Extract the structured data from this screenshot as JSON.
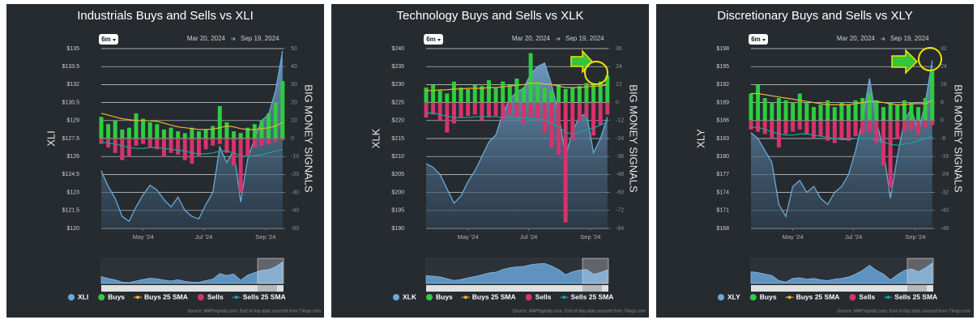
{
  "chart_data": [
    {
      "type": "combo",
      "title": "Industrials Buys and Sells vs XLI",
      "range_button": "6m",
      "date_from": "Mar 20, 2024",
      "date_to": "Sep 19, 2024",
      "ylabel": "XLI",
      "y2label": "BIG MONEY SIGNALS",
      "grid": true,
      "x": [
        "2024-03-20",
        "2024-03-27",
        "2024-04-03",
        "2024-04-10",
        "2024-04-17",
        "2024-04-24",
        "2024-05-01",
        "2024-05-08",
        "2024-05-15",
        "2024-05-22",
        "2024-05-29",
        "2024-06-05",
        "2024-06-12",
        "2024-06-19",
        "2024-06-26",
        "2024-07-03",
        "2024-07-10",
        "2024-07-17",
        "2024-07-24",
        "2024-07-31",
        "2024-08-07",
        "2024-08-14",
        "2024-08-21",
        "2024-08-28",
        "2024-09-04",
        "2024-09-11",
        "2024-09-18"
      ],
      "xlim": [
        "2024-03-20",
        "2024-09-19"
      ],
      "xticks": [
        {
          "value": "2024-05-01",
          "label": "May '24"
        },
        {
          "value": "2024-07-01",
          "label": "Jul '24"
        },
        {
          "value": "2024-09-01",
          "label": "Sep '24"
        }
      ],
      "ylim": [
        120,
        135
      ],
      "yticks": [
        {
          "value": 120,
          "label": "$120"
        },
        {
          "value": 121.5,
          "label": "$121.5"
        },
        {
          "value": 123,
          "label": "$123"
        },
        {
          "value": 124.5,
          "label": "$124.5"
        },
        {
          "value": 126,
          "label": "$126"
        },
        {
          "value": 127.5,
          "label": "$127.5"
        },
        {
          "value": 129,
          "label": "$129"
        },
        {
          "value": 130.5,
          "label": "$130.5"
        },
        {
          "value": 132,
          "label": "$132"
        },
        {
          "value": 133.5,
          "label": "$133.5"
        },
        {
          "value": 135,
          "label": "$135"
        }
      ],
      "y2lim": [
        -50,
        50
      ],
      "y2ticks": [
        -50,
        -40,
        -30,
        -20,
        -10,
        0,
        10,
        20,
        30,
        40,
        50
      ],
      "series": [
        {
          "name": "XLI",
          "color": "#6aa9d8",
          "kind": "area",
          "values": [
            124.8,
            123.5,
            122.5,
            121.0,
            120.6,
            121.8,
            122.8,
            123.6,
            123.2,
            122.4,
            121.8,
            122.6,
            121.5,
            121.0,
            120.8,
            122.0,
            123.0,
            126.8,
            125.5,
            126.5,
            122.2,
            125.8,
            127.5,
            129.0,
            129.5,
            131.5,
            134.8
          ]
        },
        {
          "name": "Buys",
          "color": "#2ecc40",
          "kind": "bar",
          "axis": "y2",
          "values": [
            12,
            8,
            10,
            5,
            6,
            14,
            11,
            9,
            8,
            5,
            6,
            4,
            3,
            6,
            4,
            5,
            7,
            18,
            9,
            4,
            3,
            6,
            8,
            10,
            14,
            20,
            32
          ]
        },
        {
          "name": "Buys 25 SMA",
          "color": "#e8b52e",
          "kind": "line",
          "axis": "y2",
          "values": [
            14,
            13,
            12,
            11,
            10.5,
            10,
            10,
            9.8,
            9.5,
            8.5,
            7.5,
            6.5,
            6,
            5.5,
            5,
            5,
            5.2,
            6,
            7,
            6.5,
            5.5,
            5,
            5,
            5.5,
            6,
            7,
            9
          ]
        },
        {
          "name": "Sells",
          "color": "#d6336c",
          "kind": "bar",
          "axis": "y2",
          "values": [
            -3,
            -5,
            -8,
            -12,
            -10,
            -4,
            -3,
            -5,
            -6,
            -10,
            -8,
            -9,
            -12,
            -14,
            -10,
            -6,
            -4,
            -3,
            -8,
            -15,
            -30,
            -10,
            -5,
            -4,
            -3,
            -2,
            -1
          ]
        },
        {
          "name": "Sells 25 SMA",
          "color": "#1ba39c",
          "kind": "line",
          "axis": "y2",
          "values": [
            -2,
            -2.5,
            -3,
            -4,
            -5,
            -5.5,
            -5.5,
            -5,
            -5,
            -5.5,
            -6,
            -6.5,
            -7,
            -8,
            -8.5,
            -8.5,
            -8,
            -7,
            -7,
            -8,
            -9.5,
            -10,
            -9.5,
            -9,
            -8,
            -7,
            -6
          ]
        }
      ],
      "source": "Source: MAPsignals.com. End of day data sourced from Tiingo.com"
    },
    {
      "type": "combo",
      "title": "Technology Buys and Sells vs XLK",
      "range_button": "6m",
      "date_from": "Mar 20, 2024",
      "date_to": "Sep 19, 2024",
      "ylabel": "XLK",
      "y2label": "BIG MONEY SIGNALS",
      "grid": true,
      "x": [
        "2024-03-20",
        "2024-03-27",
        "2024-04-03",
        "2024-04-10",
        "2024-04-17",
        "2024-04-24",
        "2024-05-01",
        "2024-05-08",
        "2024-05-15",
        "2024-05-22",
        "2024-05-29",
        "2024-06-05",
        "2024-06-12",
        "2024-06-19",
        "2024-06-26",
        "2024-07-03",
        "2024-07-10",
        "2024-07-17",
        "2024-07-24",
        "2024-07-31",
        "2024-08-07",
        "2024-08-14",
        "2024-08-21",
        "2024-08-28",
        "2024-09-04",
        "2024-09-11",
        "2024-09-18"
      ],
      "xlim": [
        "2024-03-20",
        "2024-09-19"
      ],
      "xticks": [
        {
          "value": "2024-05-01",
          "label": "May '24"
        },
        {
          "value": "2024-07-01",
          "label": "Jul '24"
        },
        {
          "value": "2024-09-01",
          "label": "Sep '24"
        }
      ],
      "ylim": [
        190,
        240
      ],
      "yticks": [
        {
          "value": 190,
          "label": "$190"
        },
        {
          "value": 195,
          "label": "$195"
        },
        {
          "value": 200,
          "label": "$200"
        },
        {
          "value": 205,
          "label": "$205"
        },
        {
          "value": 210,
          "label": "$210"
        },
        {
          "value": 215,
          "label": "$215"
        },
        {
          "value": 220,
          "label": "$220"
        },
        {
          "value": 225,
          "label": "$225"
        },
        {
          "value": 230,
          "label": "$230"
        },
        {
          "value": 235,
          "label": "$235"
        },
        {
          "value": 240,
          "label": "$240"
        }
      ],
      "y2lim": [
        -84,
        36
      ],
      "y2ticks": [
        -84,
        -72,
        -60,
        -48,
        -36,
        -24,
        -12,
        0,
        12,
        24,
        36
      ],
      "series": [
        {
          "name": "XLK",
          "color": "#6aa9d8",
          "kind": "area",
          "values": [
            208,
            207,
            205,
            201,
            197,
            199,
            203,
            206,
            210,
            214,
            216,
            222,
            226,
            228,
            229,
            233,
            235,
            236,
            230,
            222,
            210,
            217,
            221,
            222,
            211,
            215,
            221
          ]
        },
        {
          "name": "Buys",
          "color": "#2ecc40",
          "kind": "bar",
          "axis": "y2",
          "values": [
            10,
            12,
            8,
            6,
            14,
            10,
            9,
            12,
            11,
            15,
            10,
            14,
            12,
            16,
            10,
            33,
            14,
            10,
            8,
            12,
            9,
            10,
            11,
            13,
            12,
            14,
            18
          ]
        },
        {
          "name": "Buys 25 SMA",
          "color": "#e8b52e",
          "kind": "line",
          "axis": "y2",
          "values": [
            8,
            8,
            8.5,
            8.5,
            9,
            9,
            9.5,
            9.5,
            9.5,
            10,
            10,
            10.5,
            11,
            11.5,
            12,
            13,
            13,
            12.5,
            12,
            11,
            10,
            10,
            10,
            10.5,
            11,
            11,
            12
          ]
        },
        {
          "name": "Sells",
          "color": "#d6336c",
          "kind": "bar",
          "axis": "y2",
          "values": [
            -10,
            -8,
            -12,
            -20,
            -14,
            -10,
            -9,
            -8,
            -12,
            -10,
            -9,
            -12,
            -8,
            -10,
            -14,
            -10,
            -12,
            -20,
            -30,
            -35,
            -80,
            -25,
            -12,
            -10,
            -22,
            -15,
            -8
          ]
        },
        {
          "name": "Sells 25 SMA",
          "color": "#1ba39c",
          "kind": "line",
          "axis": "y2",
          "values": [
            -7,
            -7,
            -8,
            -9,
            -10,
            -10,
            -10,
            -9.5,
            -9.5,
            -9.5,
            -9.5,
            -10,
            -10,
            -10,
            -10.5,
            -10.5,
            -11,
            -12,
            -14,
            -16,
            -20,
            -21,
            -20,
            -18,
            -17,
            -15,
            -13
          ]
        }
      ],
      "source": "Source: MAPsignals.com. End of day data sourced from Tiingo.com"
    },
    {
      "type": "combo",
      "title": "Discretionary Buys and Sells vs XLY",
      "range_button": "6m",
      "date_from": "Mar 20, 2024",
      "date_to": "Sep 19, 2024",
      "ylabel": "XLY",
      "y2label": "BIG MONEY SIGNALS",
      "grid": true,
      "x": [
        "2024-03-20",
        "2024-03-27",
        "2024-04-03",
        "2024-04-10",
        "2024-04-17",
        "2024-04-24",
        "2024-05-01",
        "2024-05-08",
        "2024-05-15",
        "2024-05-22",
        "2024-05-29",
        "2024-06-05",
        "2024-06-12",
        "2024-06-19",
        "2024-06-26",
        "2024-07-03",
        "2024-07-10",
        "2024-07-17",
        "2024-07-24",
        "2024-07-31",
        "2024-08-07",
        "2024-08-14",
        "2024-08-21",
        "2024-08-28",
        "2024-09-04",
        "2024-09-11",
        "2024-09-18"
      ],
      "xlim": [
        "2024-03-20",
        "2024-09-19"
      ],
      "xticks": [
        {
          "value": "2024-05-01",
          "label": "May '24"
        },
        {
          "value": "2024-07-01",
          "label": "Jul '24"
        },
        {
          "value": "2024-09-01",
          "label": "Sep '24"
        }
      ],
      "ylim": [
        168,
        198
      ],
      "yticks": [
        {
          "value": 168,
          "label": "$168"
        },
        {
          "value": 171,
          "label": "$171"
        },
        {
          "value": 174,
          "label": "$174"
        },
        {
          "value": 177,
          "label": "$177"
        },
        {
          "value": 180,
          "label": "$180"
        },
        {
          "value": 183,
          "label": "$183"
        },
        {
          "value": 186,
          "label": "$186"
        },
        {
          "value": 189,
          "label": "$189"
        },
        {
          "value": 192,
          "label": "$192"
        },
        {
          "value": 195,
          "label": "$195"
        },
        {
          "value": 198,
          "label": "$198"
        }
      ],
      "y2lim": [
        -48,
        32
      ],
      "y2ticks": [
        -48,
        -40,
        -32,
        -24,
        -16,
        -8,
        0,
        8,
        16,
        24,
        32
      ],
      "series": [
        {
          "name": "XLY",
          "color": "#6aa9d8",
          "kind": "area",
          "values": [
            184,
            183,
            181,
            179,
            172,
            170,
            175,
            176,
            174,
            175,
            173,
            172,
            174,
            175,
            177,
            181,
            186,
            193,
            186,
            181,
            173,
            180,
            186,
            188,
            184,
            189,
            196
          ]
        },
        {
          "name": "Buys",
          "color": "#2ecc40",
          "kind": "bar",
          "axis": "y2",
          "values": [
            12,
            16,
            10,
            8,
            10,
            9,
            8,
            12,
            8,
            6,
            7,
            9,
            6,
            8,
            7,
            9,
            10,
            12,
            9,
            6,
            8,
            7,
            9,
            8,
            6,
            10,
            22
          ]
        },
        {
          "name": "Buys 25 SMA",
          "color": "#e8b52e",
          "kind": "line",
          "axis": "y2",
          "values": [
            12,
            12,
            11.5,
            11,
            10.5,
            10,
            9.5,
            9,
            8.5,
            8,
            7.5,
            7,
            7,
            7,
            7,
            7.5,
            8,
            8.5,
            8.5,
            8,
            7.5,
            7,
            7,
            7.5,
            7.5,
            7.5,
            9
          ]
        },
        {
          "name": "Sells",
          "color": "#d6336c",
          "kind": "bar",
          "axis": "y2",
          "values": [
            -4,
            -5,
            -6,
            -8,
            -12,
            -6,
            -5,
            -4,
            -6,
            -8,
            -7,
            -9,
            -10,
            -8,
            -9,
            -7,
            -6,
            -5,
            -10,
            -20,
            -30,
            -8,
            -5,
            -4,
            -6,
            -3,
            -2
          ]
        },
        {
          "name": "Sells 25 SMA",
          "color": "#1ba39c",
          "kind": "line",
          "axis": "y2",
          "values": [
            -3,
            -3,
            -4,
            -5,
            -6,
            -6.5,
            -6.5,
            -6,
            -6,
            -6.5,
            -7,
            -7.5,
            -8,
            -8.5,
            -8.5,
            -8,
            -8,
            -8,
            -8.5,
            -9.5,
            -10.5,
            -11,
            -10.5,
            -10,
            -9,
            -8,
            -7
          ]
        }
      ],
      "source": "Source: MAPsignals.com. End of day data sourced from Tiingo.com"
    }
  ]
}
